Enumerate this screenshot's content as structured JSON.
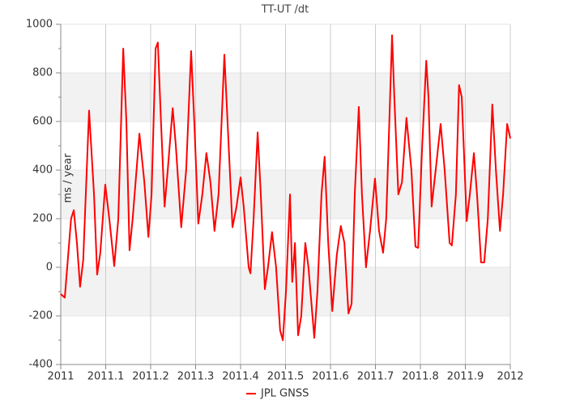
{
  "chart_data": {
    "type": "line",
    "title": "TT-UT /dt",
    "y_label": "ms / year",
    "xlim": [
      2011,
      2012
    ],
    "xticks": [
      2011,
      2011.1,
      2011.2,
      2011.3,
      2011.4,
      2011.5,
      2011.6,
      2011.7,
      2011.8,
      2011.9,
      2012
    ],
    "ylim": [
      -400,
      1000
    ],
    "yticks": [
      -400,
      -200,
      0,
      200,
      400,
      600,
      800,
      1000
    ],
    "grid": true,
    "legend": "bottom",
    "series": [
      {
        "name": "JPL GNSS",
        "color": "#ff0000",
        "x": [
          2011,
          2011.009,
          2011.023,
          2011.029,
          2011.036,
          2011.043,
          2011.05,
          2011.063,
          2011.074,
          2011.081,
          2011.088,
          2011.099,
          2011.108,
          2011.119,
          2011.128,
          2011.139,
          2011.146,
          2011.153,
          2011.16,
          2011.175,
          2011.186,
          2011.195,
          2011.202,
          2011.211,
          2011.216,
          2011.223,
          2011.231,
          2011.238,
          2011.249,
          2011.256,
          2011.268,
          2011.279,
          2011.29,
          2011.297,
          2011.306,
          2011.315,
          2011.324,
          2011.333,
          2011.342,
          2011.351,
          2011.364,
          2011.371,
          2011.382,
          2011.391,
          2011.4,
          2011.407,
          2011.418,
          2011.422,
          2011.429,
          2011.438,
          2011.445,
          2011.454,
          2011.461,
          2011.47,
          2011.479,
          2011.488,
          2011.494,
          2011.501,
          2011.51,
          2011.515,
          2011.521,
          2011.528,
          2011.535,
          2011.544,
          2011.551,
          2011.564,
          2011.571,
          2011.58,
          2011.587,
          2011.595,
          2011.604,
          2011.614,
          2011.623,
          2011.631,
          2011.64,
          2011.647,
          2011.654,
          2011.663,
          2011.67,
          2011.679,
          2011.688,
          2011.699,
          2011.708,
          2011.717,
          2011.724,
          2011.737,
          2011.742,
          2011.751,
          2011.759,
          2011.769,
          2011.78,
          2011.789,
          2011.795,
          2011.804,
          2011.813,
          2011.818,
          2011.825,
          2011.834,
          2011.845,
          2011.854,
          2011.865,
          2011.87,
          2011.879,
          2011.886,
          2011.892,
          2011.903,
          2011.91,
          2011.919,
          2011.926,
          2011.935,
          2011.942,
          2011.95,
          2011.96,
          2011.968,
          2011.977,
          2011.984,
          2011.993,
          2012
        ],
        "values": [
          -110,
          -125,
          200,
          235,
          100,
          -80,
          30,
          645,
          300,
          -30,
          60,
          340,
          200,
          5,
          200,
          900,
          600,
          70,
          200,
          550,
          350,
          125,
          300,
          900,
          925,
          600,
          250,
          400,
          655,
          500,
          165,
          400,
          890,
          600,
          180,
          300,
          470,
          350,
          150,
          300,
          875,
          600,
          165,
          250,
          370,
          250,
          0,
          -25,
          200,
          555,
          300,
          -90,
          0,
          145,
          0,
          -260,
          -300,
          -100,
          300,
          -60,
          100,
          -280,
          -200,
          100,
          0,
          -290,
          -100,
          300,
          455,
          100,
          -180,
          50,
          170,
          100,
          -190,
          -150,
          300,
          660,
          300,
          0,
          150,
          365,
          150,
          60,
          200,
          955,
          700,
          300,
          350,
          615,
          400,
          85,
          80,
          500,
          850,
          700,
          250,
          400,
          590,
          400,
          100,
          90,
          300,
          750,
          700,
          190,
          300,
          470,
          300,
          20,
          20,
          200,
          670,
          400,
          150,
          300,
          590,
          530
        ]
      }
    ]
  }
}
